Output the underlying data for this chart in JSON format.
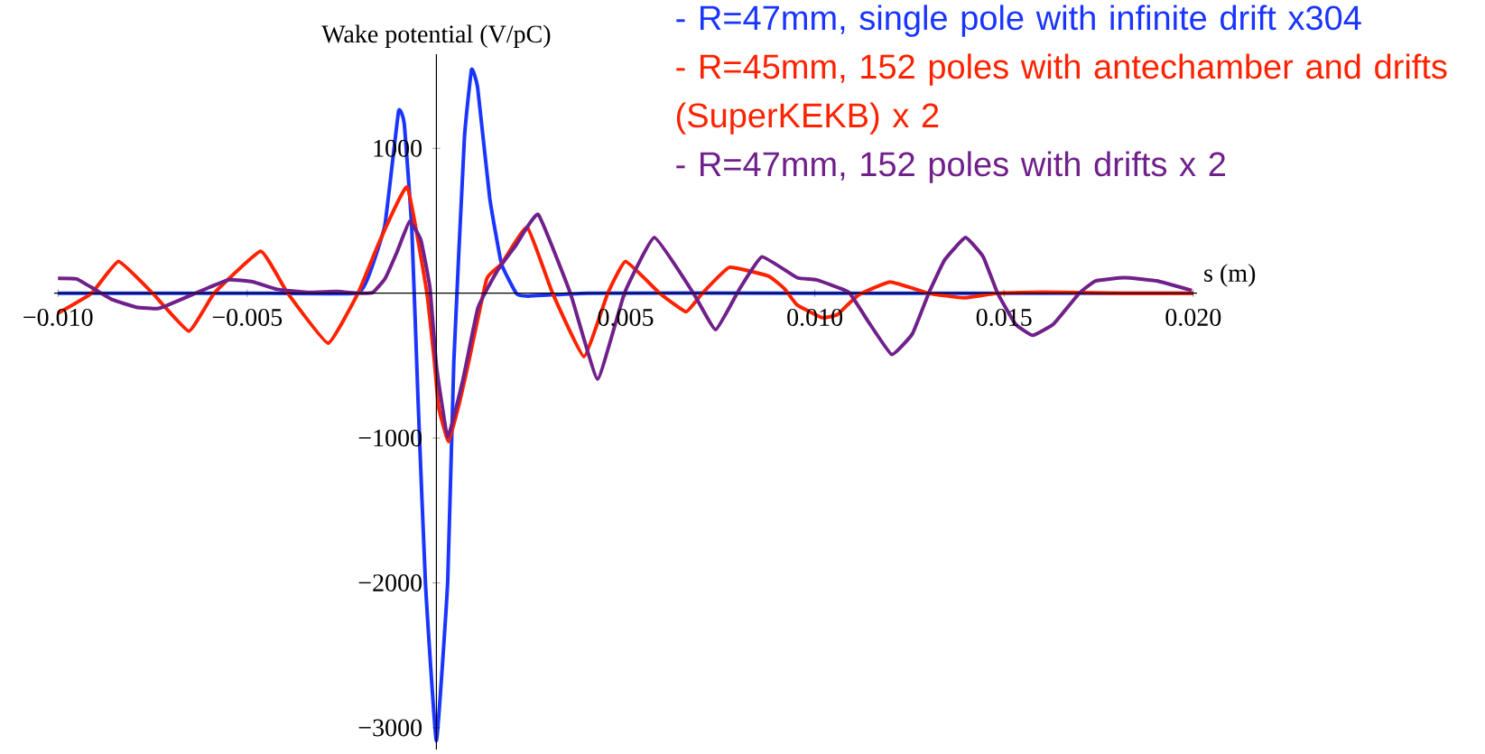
{
  "chart_data": {
    "type": "line",
    "xlabel": "s (m)",
    "ylabel": "Wake potential (V/pC)",
    "xlim": [
      -0.0101,
      0.0201
    ],
    "ylim": [
      -3150,
      1650
    ],
    "xticks": [
      {
        "value": -0.01,
        "label": "−0.010"
      },
      {
        "value": -0.005,
        "label": "−0.005"
      },
      {
        "value": 0.005,
        "label": "0.005"
      },
      {
        "value": 0.01,
        "label": "0.010"
      },
      {
        "value": 0.015,
        "label": "0.015"
      },
      {
        "value": 0.02,
        "label": "0.020"
      }
    ],
    "yticks": [
      {
        "value": -3000,
        "label": "−3000"
      },
      {
        "value": -2000,
        "label": "−2000"
      },
      {
        "value": -1000,
        "label": "−1000"
      },
      1000
    ],
    "legend": "top right",
    "series": [
      {
        "name": "- R=47mm, single pole with infinite drift x304",
        "color": "#1a35ff",
        "x": [
          -0.01,
          -0.005,
          -0.0021,
          -0.00176,
          -0.00136,
          -0.001,
          -0.00085,
          -0.00065,
          -0.00049,
          -0.00029,
          0,
          0.0003,
          0.00046,
          0.00074,
          0.00093,
          0.00109,
          0.00141,
          0.00172,
          0.00212,
          0.00244,
          0.004,
          0.01,
          0.02
        ],
        "values": [
          0,
          0,
          0,
          140,
          471,
          1255,
          1172,
          450,
          -700,
          -1996,
          -3090,
          -1985,
          -479,
          1069,
          1544,
          1420,
          656,
          202,
          -4,
          -20,
          0,
          0,
          0
        ]
      },
      {
        "name": "- R=45mm, 152 poles with antechamber and drifts (SuperKEKB) x 2",
        "color": "#ff2200",
        "x": [
          -0.01,
          -0.00911,
          -0.0084,
          -0.0075,
          -0.00654,
          -0.00587,
          -0.00464,
          -0.00393,
          -0.00286,
          -0.00207,
          -0.00152,
          -0.00077,
          -0.00025,
          -5e-05,
          6e-05,
          0.00032,
          0.00062,
          0.00085,
          0.00133,
          0.00172,
          0.0024,
          0.00307,
          0.0039,
          0.00453,
          0.005,
          0.0059,
          0.0066,
          0.00703,
          0.00774,
          0.00877,
          0.0092,
          0.00953,
          0.0102,
          0.0106,
          0.01114,
          0.01199,
          0.01301,
          0.01394,
          0.0148,
          0.016,
          0.018,
          0.02
        ],
        "values": [
          -138,
          0,
          219,
          0,
          -262,
          0,
          289,
          0,
          -345,
          0,
          347,
          733,
          0,
          -479,
          -788,
          -1025,
          -745,
          -479,
          99,
          202,
          456,
          0,
          -438,
          0,
          219,
          0,
          -128,
          0,
          178,
          119,
          30,
          -81,
          -169,
          -147,
          -14,
          78,
          0,
          -32,
          0,
          8,
          0,
          0
        ]
      },
      {
        "name": "- R=47mm, 152 poles with drifts x 2",
        "color": "#70208a",
        "x": [
          -0.01,
          -0.00951,
          -0.00903,
          -0.00856,
          -0.00793,
          -0.00737,
          -0.00714,
          -0.00658,
          -0.00603,
          -0.00547,
          -0.00484,
          -0.00421,
          -0.00342,
          -0.00263,
          -0.00207,
          -0.00168,
          -0.00136,
          -0.00104,
          -0.00071,
          -0.00041,
          -0.00017,
          0.0,
          0.0003,
          0.0007,
          0.0011,
          0.0016,
          0.0021,
          0.00269,
          0.00354,
          0.00426,
          0.00497,
          0.00576,
          0.00679,
          0.00738,
          0.00801,
          0.0086,
          0.00953,
          0.01004,
          0.01089,
          0.0114,
          0.01203,
          0.01258,
          0.01301,
          0.01343,
          0.01398,
          0.01445,
          0.01483,
          0.0153,
          0.01576,
          0.01631,
          0.01699,
          0.01742,
          0.01818,
          0.01903,
          0.01996
        ],
        "values": [
          103,
          99,
          27,
          -45,
          -97,
          -107,
          -87,
          -25,
          37,
          93,
          78,
          27,
          6,
          12,
          0,
          5,
          99,
          285,
          495,
          367,
          37,
          -500,
          -990,
          -600,
          -100,
          150,
          330,
          543,
          0,
          -592,
          0,
          384,
          0,
          -252,
          29,
          251,
          107,
          92,
          8,
          -191,
          -423,
          -280,
          0,
          229,
          384,
          251,
          0,
          -213,
          -291,
          -213,
          0,
          85,
          107,
          85,
          19
        ]
      }
    ]
  }
}
